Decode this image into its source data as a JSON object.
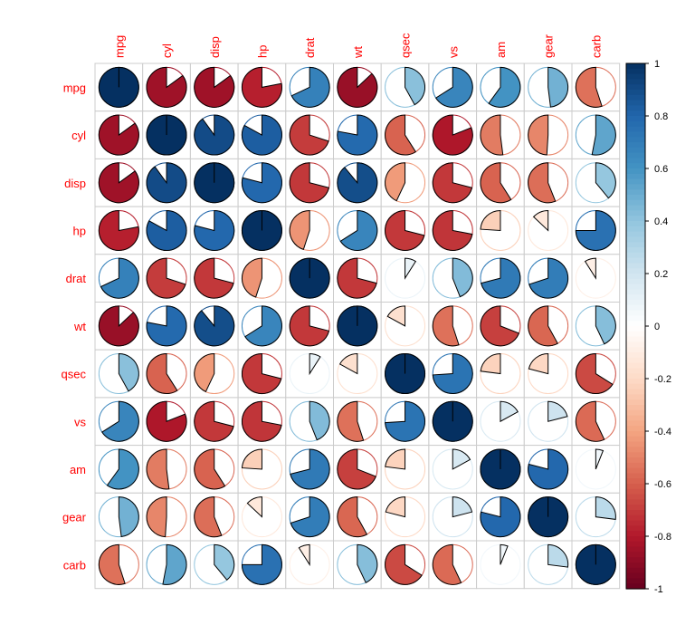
{
  "chart_data": {
    "type": "heatmap",
    "style": "pie",
    "variables": [
      "mpg",
      "cyl",
      "disp",
      "hp",
      "drat",
      "wt",
      "qsec",
      "vs",
      "am",
      "gear",
      "carb"
    ],
    "matrix": [
      [
        1.0,
        -0.85,
        -0.85,
        -0.78,
        0.68,
        -0.87,
        0.42,
        0.66,
        0.6,
        0.48,
        -0.55
      ],
      [
        -0.85,
        1.0,
        0.9,
        0.83,
        -0.7,
        0.78,
        -0.59,
        -0.81,
        -0.52,
        -0.49,
        0.53
      ],
      [
        -0.85,
        0.9,
        1.0,
        0.79,
        -0.71,
        0.89,
        -0.43,
        -0.71,
        -0.59,
        -0.56,
        0.39
      ],
      [
        -0.78,
        0.83,
        0.79,
        1.0,
        -0.45,
        0.66,
        -0.71,
        -0.72,
        -0.24,
        -0.13,
        0.75
      ],
      [
        0.68,
        -0.7,
        -0.71,
        -0.45,
        1.0,
        -0.71,
        0.09,
        0.44,
        0.71,
        0.7,
        -0.09
      ],
      [
        -0.87,
        0.78,
        0.89,
        0.66,
        -0.71,
        1.0,
        -0.17,
        -0.55,
        -0.69,
        -0.58,
        0.43
      ],
      [
        0.42,
        -0.59,
        -0.43,
        -0.71,
        0.09,
        -0.17,
        1.0,
        0.74,
        -0.23,
        -0.21,
        -0.66
      ],
      [
        0.66,
        -0.81,
        -0.71,
        -0.72,
        0.44,
        -0.55,
        0.74,
        1.0,
        0.17,
        0.21,
        -0.57
      ],
      [
        0.6,
        -0.52,
        -0.59,
        -0.24,
        0.71,
        -0.69,
        -0.23,
        0.17,
        1.0,
        0.79,
        0.06
      ],
      [
        0.48,
        -0.49,
        -0.56,
        -0.13,
        0.7,
        -0.58,
        -0.21,
        0.21,
        0.79,
        1.0,
        0.27
      ],
      [
        -0.55,
        0.53,
        0.39,
        0.75,
        -0.09,
        0.43,
        -0.66,
        -0.57,
        0.06,
        0.27,
        1.0
      ]
    ],
    "colorbar": {
      "ticks": [
        "1",
        "0.8",
        "0.6",
        "0.4",
        "0.2",
        "0",
        "-0.2",
        "-0.4",
        "-0.6",
        "-0.8",
        "-1"
      ],
      "range": [
        -1,
        1
      ]
    },
    "colors": {
      "label": "#ff0000",
      "stops": [
        "#67001f",
        "#b2182b",
        "#d6604d",
        "#f4a582",
        "#fddbc7",
        "#ffffff",
        "#d1e5f0",
        "#92c5de",
        "#4393c3",
        "#2166ac",
        "#053061"
      ]
    }
  }
}
